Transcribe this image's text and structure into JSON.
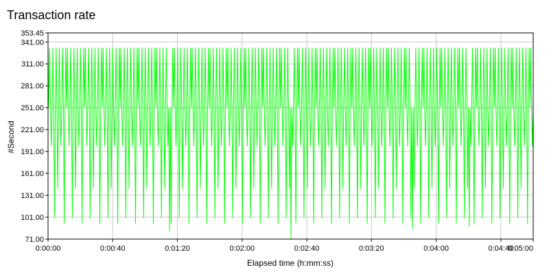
{
  "chart_data": {
    "type": "line",
    "title": "Transaction rate",
    "xlabel": "Elapsed time (h:mm:ss)",
    "ylabel": "#Second",
    "xlim": [
      "0:00:00",
      "0:05:00"
    ],
    "ylim": [
      71.0,
      353.45
    ],
    "x_ticks": [
      "0:00:00",
      "0:00:40",
      "0:01:20",
      "0:02:00",
      "0:02:40",
      "0:03:20",
      "0:04:00",
      "0:04:40",
      "0:05:00"
    ],
    "y_ticks": [
      "71.00",
      "101.00",
      "131.00",
      "161.00",
      "191.00",
      "221.00",
      "251.00",
      "281.00",
      "311.00",
      "341.00",
      "353.45"
    ],
    "grid": true,
    "series": [
      {
        "name": "",
        "color": "#00ff00",
        "pattern_levels": [
          333,
          251,
          333,
          251,
          198,
          251,
          333,
          251,
          100,
          251,
          333,
          251,
          140,
          251,
          333,
          251,
          198,
          251,
          333,
          251,
          92,
          251
        ],
        "sample_count": 600,
        "summary": "oscillating between ~251 and ~333 with frequent dips to ~190-200 and ~90-110; minimum ~71"
      }
    ]
  }
}
